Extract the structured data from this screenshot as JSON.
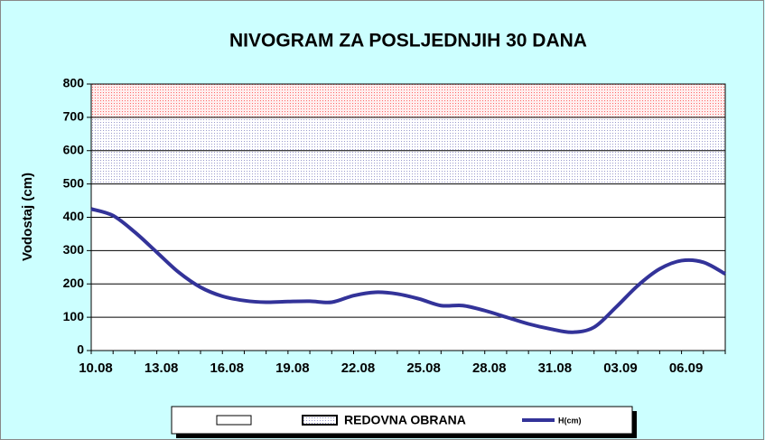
{
  "chart_data": {
    "type": "line",
    "title": "NIVOGRAM ZA POSLJEDNJIH 30 DANA",
    "y_label": "Vodostaj (cm)",
    "categories": [
      "10.08",
      null,
      null,
      "13.08",
      null,
      null,
      "16.08",
      null,
      null,
      "19.08",
      null,
      null,
      "22.08",
      null,
      null,
      "25.08",
      null,
      null,
      "28.08",
      null,
      null,
      "31.08",
      null,
      null,
      "03.09",
      null,
      null,
      "06.09",
      null,
      null
    ],
    "series": [
      {
        "name": "H(cm)",
        "color": "#333399",
        "values": [
          425,
          405,
          355,
          295,
          235,
          190,
          163,
          150,
          145,
          147,
          148,
          145,
          165,
          175,
          170,
          155,
          135,
          135,
          120,
          100,
          80,
          65,
          55,
          70,
          130,
          195,
          245,
          270,
          265,
          230
        ]
      }
    ],
    "bands": [
      {
        "name": "REDOVNA OBRANA",
        "from": 500,
        "to": 700,
        "color": "#9999cc"
      },
      {
        "from": 700,
        "to": 800,
        "color": "#ff6666"
      }
    ],
    "ylim": [
      0,
      800
    ],
    "yticks": [
      0,
      100,
      200,
      300,
      400,
      500,
      600,
      700,
      800
    ],
    "grid": true
  }
}
